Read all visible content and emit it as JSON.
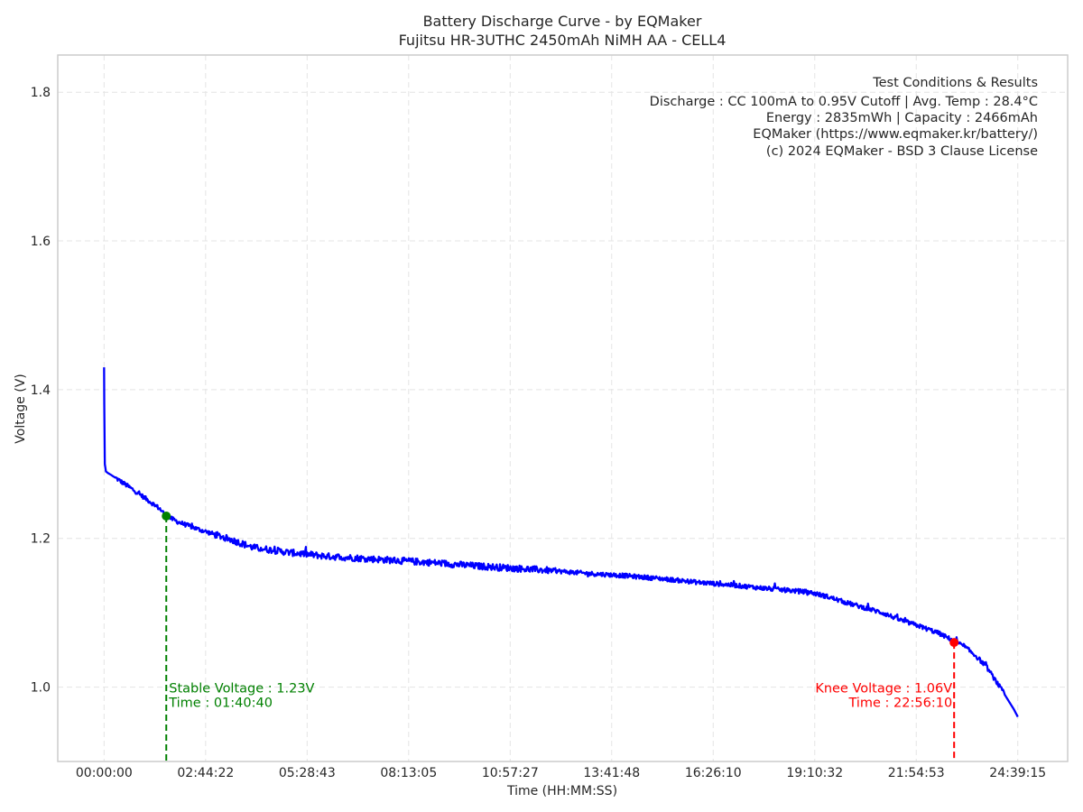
{
  "chart_data": {
    "type": "line",
    "title": "Battery Discharge Curve - by EQMaker",
    "subtitle": "Fujitsu HR-3UTHC 2450mAh NiMH AA - CELL4",
    "xlabel": "Time (HH:MM:SS)",
    "ylabel": "Voltage (V)",
    "x_unit": "hours",
    "xlim": [
      -1.25,
      26.0
    ],
    "ylim": [
      0.9,
      1.85
    ],
    "grid": true,
    "x_ticks": [
      {
        "value": 0.0,
        "label": "00:00:00"
      },
      {
        "value": 2.7394,
        "label": "02:44:22"
      },
      {
        "value": 5.4786,
        "label": "05:28:43"
      },
      {
        "value": 8.2181,
        "label": "08:13:05"
      },
      {
        "value": 10.9575,
        "label": "10:57:27"
      },
      {
        "value": 13.6967,
        "label": "13:41:48"
      },
      {
        "value": 16.4361,
        "label": "16:26:10"
      },
      {
        "value": 19.1756,
        "label": "19:10:32"
      },
      {
        "value": 21.9147,
        "label": "21:54:53"
      },
      {
        "value": 24.6542,
        "label": "24:39:15"
      }
    ],
    "y_ticks": [
      {
        "value": 1.0,
        "label": "1.0"
      },
      {
        "value": 1.2,
        "label": "1.2"
      },
      {
        "value": 1.4,
        "label": "1.4"
      },
      {
        "value": 1.6,
        "label": "1.6"
      },
      {
        "value": 1.8,
        "label": "1.8"
      }
    ],
    "series": [
      {
        "color": "#0000ff",
        "x": [
          0.0,
          0.005,
          0.02,
          0.05,
          0.1,
          0.2,
          0.5,
          1.0,
          1.5,
          1.68,
          2.0,
          2.5,
          3.0,
          3.5,
          4.0,
          5.0,
          6.0,
          7.0,
          8.0,
          9.0,
          10.0,
          11.0,
          12.0,
          13.0,
          14.0,
          15.0,
          16.0,
          17.0,
          18.0,
          19.0,
          19.5,
          20.0,
          21.0,
          21.5,
          22.0,
          22.5,
          22.94,
          23.2,
          23.5,
          23.8,
          24.0,
          24.2,
          24.4,
          24.55,
          24.654
        ],
        "y": [
          1.43,
          1.38,
          1.3,
          1.29,
          1.288,
          1.285,
          1.275,
          1.258,
          1.24,
          1.23,
          1.222,
          1.213,
          1.205,
          1.197,
          1.188,
          1.181,
          1.176,
          1.173,
          1.17,
          1.167,
          1.163,
          1.16,
          1.157,
          1.153,
          1.15,
          1.146,
          1.141,
          1.137,
          1.132,
          1.128,
          1.122,
          1.114,
          1.1,
          1.09,
          1.082,
          1.073,
          1.062,
          1.055,
          1.043,
          1.028,
          1.013,
          0.998,
          0.982,
          0.97,
          0.96
        ]
      }
    ],
    "stable_point": {
      "x": 1.678,
      "y": 1.23,
      "color": "#008000",
      "label_voltage": "Stable Voltage : 1.23V",
      "label_time": "Time : 01:40:40"
    },
    "knee_point": {
      "x": 22.936,
      "y": 1.06,
      "color": "#ff0000",
      "label_voltage": "Knee Voltage : 1.06V",
      "label_time": "Time : 22:56:10"
    },
    "info_box": {
      "position": "top-right",
      "lines": [
        "Test Conditions & Results",
        "Discharge : CC 100mA to 0.95V Cutoff | Avg. Temp : 28.4°C",
        "Energy : 2835mWh | Capacity : 2466mAh",
        "EQMaker (https://www.eqmaker.kr/battery/)",
        "(c) 2024 EQMaker - BSD 3 Clause License"
      ]
    }
  }
}
